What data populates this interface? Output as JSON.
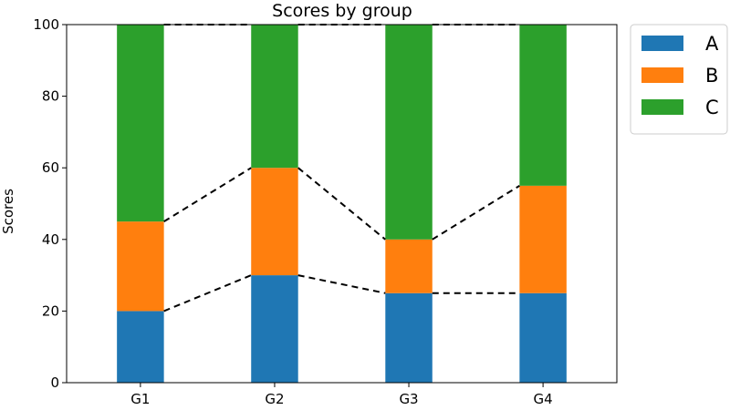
{
  "chart_data": {
    "type": "bar",
    "stacked": true,
    "title": "Scores by group",
    "xlabel": "",
    "ylabel": "Scores",
    "ylim": [
      0,
      100
    ],
    "yticks": [
      0,
      20,
      40,
      60,
      80,
      100
    ],
    "grid": false,
    "legend_position": "outside-top-right",
    "categories": [
      "G1",
      "G2",
      "G3",
      "G4"
    ],
    "series": [
      {
        "name": "A",
        "color": "#1f77b4",
        "values": [
          20,
          30,
          25,
          25
        ]
      },
      {
        "name": "B",
        "color": "#ff7f0e",
        "values": [
          25,
          30,
          15,
          30
        ]
      },
      {
        "name": "C",
        "color": "#2ca02c",
        "values": [
          55,
          40,
          60,
          45
        ]
      }
    ],
    "connector_lines": {
      "style": "dashed",
      "color": "#000000"
    }
  }
}
